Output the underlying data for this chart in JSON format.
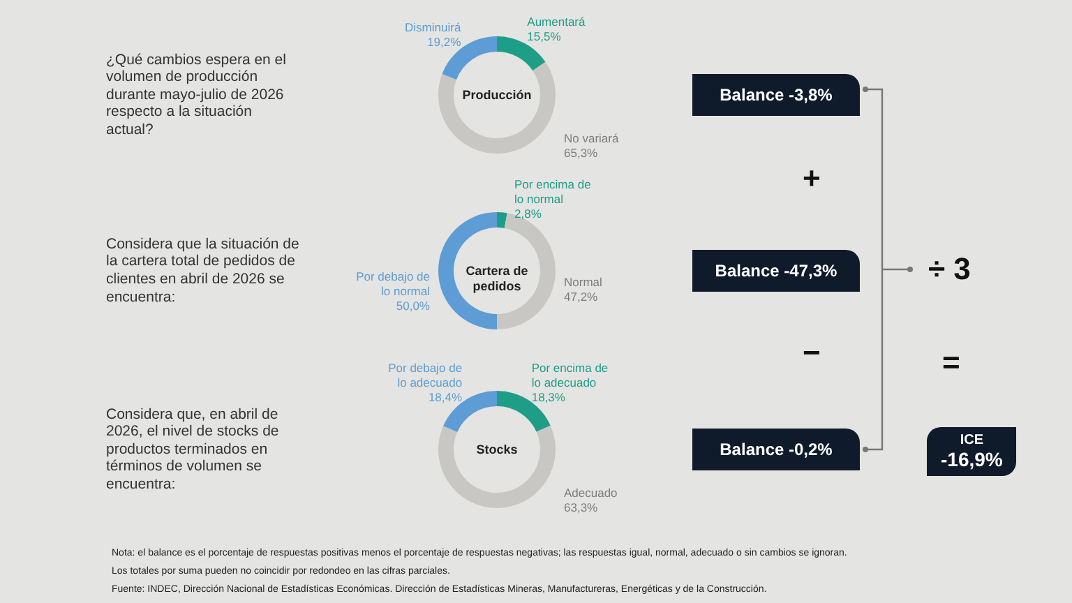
{
  "chart_data": [
    {
      "type": "donut",
      "title": "Producción",
      "categories": [
        "Aumentará",
        "No variará",
        "Disminuirá"
      ],
      "values": [
        15.5,
        65.3,
        19.2
      ],
      "colors": [
        "#1f9e87",
        "#c9c7c3",
        "#5d9cd4"
      ],
      "value_labels": [
        "15,5%",
        "65,3%",
        "19,2%"
      ],
      "annotations": [
        "¿Qué cambios espera en el volumen de producción durante mayo-julio de 2026 respecto a la situación actual?",
        "Balance -3,8%"
      ]
    },
    {
      "type": "donut",
      "title": "Cartera de pedidos",
      "categories": [
        "Por encima de lo normal",
        "Normal",
        "Por debajo de lo normal"
      ],
      "values": [
        2.8,
        47.2,
        50.0
      ],
      "colors": [
        "#1f9e87",
        "#c9c7c3",
        "#5d9cd4"
      ],
      "value_labels": [
        "2,8%",
        "47,2%",
        "50,0%"
      ],
      "annotations": [
        "Considera que la situación de la cartera total de pedidos de clientes en abril de 2026 se encuentra:",
        "Balance -47,3%"
      ]
    },
    {
      "type": "donut",
      "title": "Stocks",
      "categories": [
        "Por encima de lo adecuado",
        "Adecuado",
        "Por debajo de lo adecuado"
      ],
      "values": [
        18.3,
        63.3,
        18.4
      ],
      "colors": [
        "#1f9e87",
        "#c9c7c3",
        "#5d9cd4"
      ],
      "value_labels": [
        "18,3%",
        "63,3%",
        "18,4%"
      ],
      "annotations": [
        "Considera que, en abril de 2026, el nivel de stocks de productos terminados en términos de volumen se encuentra:",
        "Balance -0,2%"
      ]
    },
    {
      "type": "other",
      "annotations": [
        "+",
        "−",
        "÷ 3",
        "=",
        "ICE",
        "-16,9%",
        "Nota: el balance es el porcentaje de respuestas positivas menos el porcentaje de respuestas negativas; las respuestas igual, normal, adecuado o sin cambios se ignoran.",
        "Los totales por suma pueden no coincidir por redondeo en las cifras parciales.",
        "Fuente: INDEC, Dirección Nacional de Estadísticas Económicas. Dirección de Estadísticas Mineras, Manufactureras, Energéticas y de la Construcción."
      ]
    }
  ]
}
